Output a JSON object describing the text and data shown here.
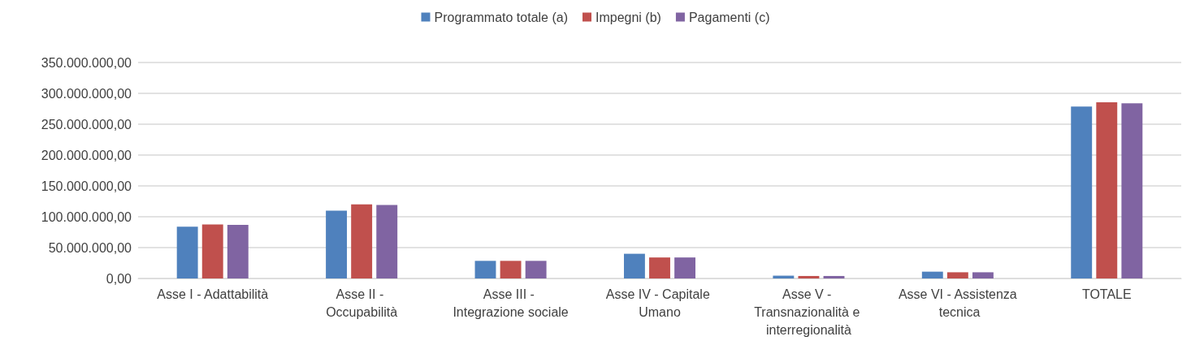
{
  "chart_data": {
    "type": "bar",
    "categories": [
      "Asse I - Adattabilità",
      "Asse II - Occupabilità",
      "Asse III - Integrazione sociale",
      "Asse IV - Capitale Umano",
      "Asse V - Transnazionalità e interregionalità",
      "Asse VI - Assistenza tecnica",
      "TOTALE"
    ],
    "series": [
      {
        "name": "Programmato totale (a)",
        "color": "#4f81bd",
        "values": [
          84000000,
          110000000,
          28500000,
          40000000,
          4500000,
          11000000,
          278500000
        ]
      },
      {
        "name": "Impegni (b)",
        "color": "#c0504d",
        "values": [
          87500000,
          120000000,
          28500000,
          34000000,
          4000000,
          10000000,
          285500000
        ]
      },
      {
        "name": "Pagamenti (c)",
        "color": "#8064a2",
        "values": [
          87000000,
          119000000,
          28500000,
          34000000,
          4000000,
          10000000,
          284000000
        ]
      }
    ],
    "ylim": [
      0,
      350000000
    ],
    "yticks": [
      {
        "value": 0,
        "label": "0,00"
      },
      {
        "value": 50000000,
        "label": "50.000.000,00"
      },
      {
        "value": 100000000,
        "label": "100.000.000,00"
      },
      {
        "value": 150000000,
        "label": "150.000.000,00"
      },
      {
        "value": 200000000,
        "label": "200.000.000,00"
      },
      {
        "value": 250000000,
        "label": "250.000.000,00"
      },
      {
        "value": 300000000,
        "label": "300.000.000,00"
      },
      {
        "value": 350000000,
        "label": "350.000.000,00"
      }
    ],
    "grid": "y",
    "legend": "top"
  }
}
